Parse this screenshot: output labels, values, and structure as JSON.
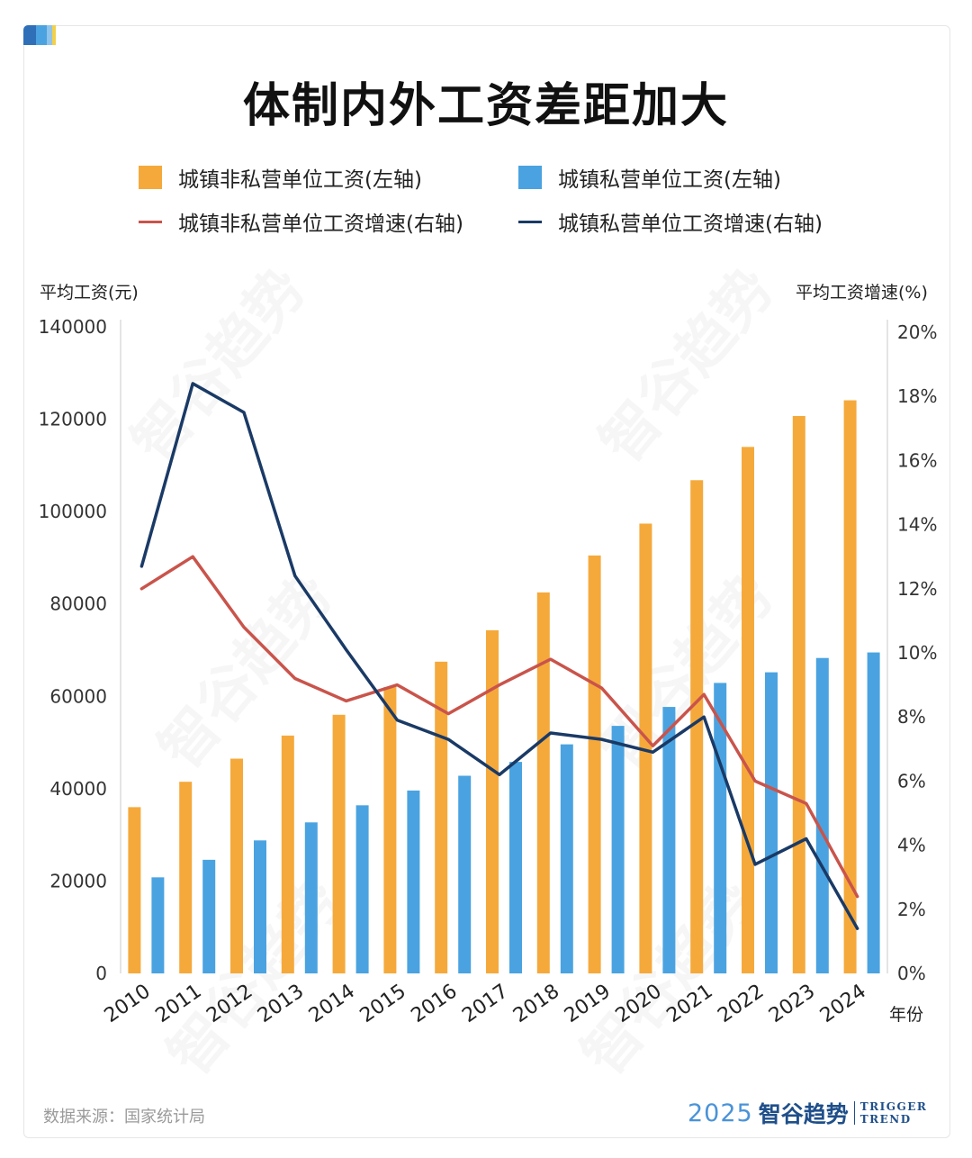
{
  "title": "体制内外工资差距加大",
  "legend": [
    {
      "label": "城镇非私营单位工资(左轴)",
      "kind": "box",
      "color": "#f5a93b"
    },
    {
      "label": "城镇私营单位工资(左轴)",
      "kind": "box",
      "color": "#4aa3e0"
    },
    {
      "label": "城镇非私营单位工资增速(右轴)",
      "kind": "line",
      "color": "#c9544b"
    },
    {
      "label": "城镇私营单位工资增速(右轴)",
      "kind": "line",
      "color": "#1a3a66"
    }
  ],
  "left_axis_title": "平均工资(元)",
  "right_axis_title": "平均工资增速(%)",
  "x_axis_title": "年份",
  "source": "数据来源：国家统计局",
  "logo": {
    "year": "2025",
    "name": "智谷趋势",
    "en_line1": "TRIGGER",
    "en_line2": "TREND"
  },
  "watermark": "智谷趋势",
  "chart_data": {
    "type": "bar",
    "categories": [
      "2010",
      "2011",
      "2012",
      "2013",
      "2014",
      "2015",
      "2016",
      "2017",
      "2018",
      "2019",
      "2020",
      "2021",
      "2022",
      "2023",
      "2024"
    ],
    "series": [
      {
        "name": "城镇非私营单位工资(左轴)",
        "type": "bar",
        "axis": "left",
        "color": "#f5a93b",
        "values": [
          36000,
          41500,
          46500,
          51500,
          56000,
          62000,
          67500,
          74300,
          82500,
          90500,
          97400,
          106800,
          114000,
          120700,
          124100
        ]
      },
      {
        "name": "城镇私营单位工资(左轴)",
        "type": "bar",
        "axis": "left",
        "color": "#4aa3e0",
        "values": [
          20800,
          24600,
          28800,
          32700,
          36400,
          39600,
          42800,
          45800,
          49600,
          53600,
          57700,
          62900,
          65200,
          68300,
          69500
        ]
      },
      {
        "name": "城镇非私营单位工资增速(右轴)",
        "type": "line",
        "axis": "right",
        "color": "#c9544b",
        "values": [
          12.0,
          13.0,
          10.8,
          9.2,
          8.5,
          9.0,
          8.1,
          9.0,
          9.8,
          8.9,
          7.1,
          8.7,
          6.0,
          5.3,
          2.4
        ]
      },
      {
        "name": "城镇私营单位工资增速(右轴)",
        "type": "line",
        "axis": "right",
        "color": "#1a3a66",
        "values": [
          12.7,
          18.4,
          17.5,
          12.4,
          10.1,
          7.9,
          7.3,
          6.2,
          7.5,
          7.3,
          6.9,
          8.0,
          3.4,
          4.2,
          1.4
        ]
      }
    ],
    "left_axis": {
      "ylim": [
        0,
        140000
      ],
      "ticks": [
        "0",
        "20000",
        "40000",
        "60000",
        "80000",
        "100000",
        "120000",
        "140000"
      ]
    },
    "right_axis": {
      "ylim": [
        0,
        20
      ],
      "ticks": [
        "0%",
        "2%",
        "4%",
        "6%",
        "8%",
        "10%",
        "12%",
        "14%",
        "16%",
        "18%",
        "20%"
      ]
    },
    "grid": false,
    "legend_position": "top"
  }
}
